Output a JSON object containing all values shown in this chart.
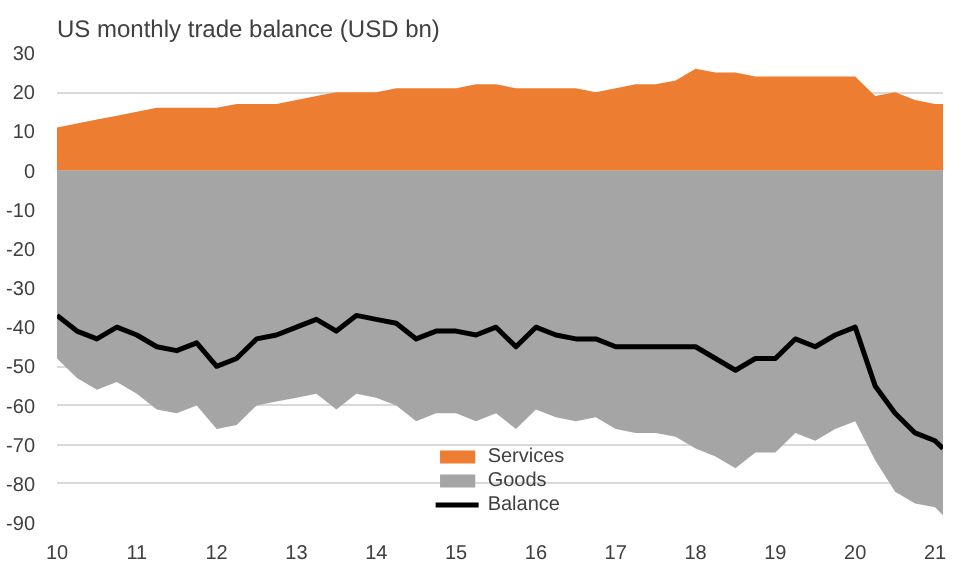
{
  "chart_data": {
    "type": "area",
    "title": "US monthly trade balance (USD bn)",
    "x": [
      10.0,
      10.25,
      10.5,
      10.75,
      11.0,
      11.25,
      11.5,
      11.75,
      12.0,
      12.25,
      12.5,
      12.75,
      13.0,
      13.25,
      13.5,
      13.75,
      14.0,
      14.25,
      14.5,
      14.75,
      15.0,
      15.25,
      15.5,
      15.75,
      16.0,
      16.25,
      16.5,
      16.75,
      17.0,
      17.25,
      17.5,
      17.75,
      18.0,
      18.25,
      18.5,
      18.75,
      19.0,
      19.25,
      19.5,
      19.75,
      20.0,
      20.25,
      20.5,
      20.75,
      21.0,
      21.1
    ],
    "series": [
      {
        "name": "Services",
        "color": "#ed7d31",
        "values": [
          11,
          12,
          13,
          14,
          15,
          16,
          16,
          16,
          16,
          17,
          17,
          17,
          18,
          19,
          20,
          20,
          20,
          21,
          21,
          21,
          21,
          22,
          22,
          21,
          21,
          21,
          21,
          20,
          21,
          22,
          22,
          23,
          26,
          25,
          25,
          24,
          24,
          24,
          24,
          24,
          24,
          19,
          20,
          18,
          17,
          17
        ]
      },
      {
        "name": "Goods",
        "color": "#a5a5a5",
        "values": [
          -48,
          -53,
          -56,
          -54,
          -57,
          -61,
          -62,
          -60,
          -66,
          -65,
          -60,
          -59,
          -58,
          -57,
          -61,
          -57,
          -58,
          -60,
          -64,
          -62,
          -62,
          -64,
          -62,
          -66,
          -61,
          -63,
          -64,
          -63,
          -66,
          -67,
          -67,
          -68,
          -71,
          -73,
          -76,
          -72,
          -72,
          -67,
          -69,
          -66,
          -64,
          -74,
          -82,
          -85,
          -86,
          -88
        ]
      },
      {
        "name": "Balance",
        "type": "line",
        "color": "#000000",
        "values": [
          -37,
          -41,
          -43,
          -40,
          -42,
          -45,
          -46,
          -44,
          -50,
          -48,
          -43,
          -42,
          -40,
          -38,
          -41,
          -37,
          -38,
          -39,
          -43,
          -41,
          -41,
          -42,
          -40,
          -45,
          -40,
          -42,
          -43,
          -43,
          -45,
          -45,
          -45,
          -45,
          -45,
          -48,
          -51,
          -48,
          -48,
          -43,
          -45,
          -42,
          -40,
          -55,
          -62,
          -67,
          -69,
          -71
        ]
      }
    ],
    "xlim": [
      10,
      21.1
    ],
    "xticks": [
      10,
      11,
      12,
      13,
      14,
      15,
      16,
      17,
      18,
      19,
      20,
      21
    ],
    "ylim": [
      -90,
      30
    ],
    "yticks": [
      -90,
      -80,
      -70,
      -60,
      -50,
      -40,
      -30,
      -20,
      -10,
      0,
      10,
      20,
      30
    ],
    "grid": "y",
    "legend": "bottom",
    "marker": "none",
    "line_style": "solid"
  }
}
